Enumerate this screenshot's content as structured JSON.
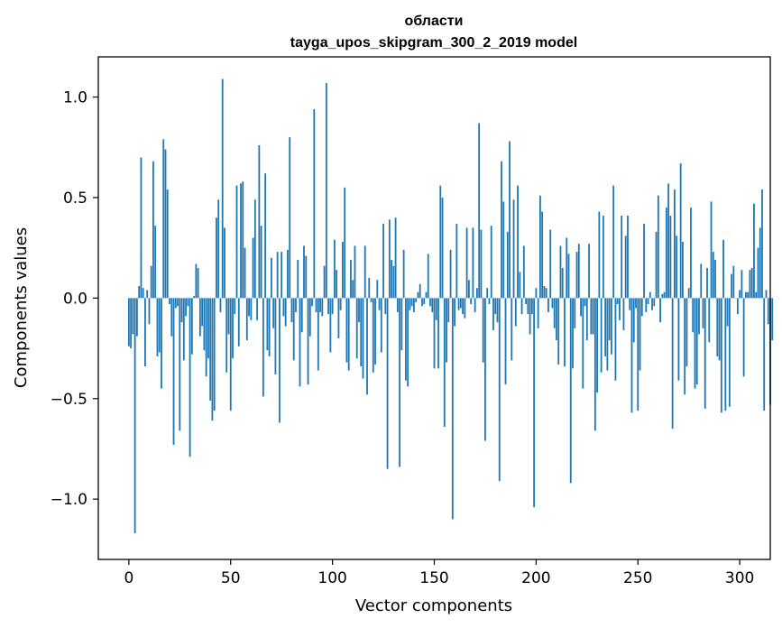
{
  "chart_data": {
    "type": "bar",
    "title": "области",
    "subtitle": "tayga_upos_skipgram_300_2_2019 model",
    "xlabel": "Vector components",
    "ylabel": "Components values",
    "xlim": [
      -15,
      315
    ],
    "ylim": [
      -1.3,
      1.2
    ],
    "x_ticks": [
      0,
      50,
      100,
      150,
      200,
      250,
      300
    ],
    "y_ticks": [
      -1.0,
      -0.5,
      0.0,
      0.5,
      1.0
    ],
    "x_tick_labels": [
      "0",
      "50",
      "100",
      "150",
      "200",
      "250",
      "300"
    ],
    "y_tick_labels": [
      "−1.0",
      "−0.5",
      "0.0",
      "0.5",
      "1.0"
    ],
    "bar_color": "#1f77b4",
    "grid": false,
    "values": [
      -0.24,
      -0.25,
      -0.18,
      -1.17,
      -0.19,
      0.06,
      0.7,
      0.05,
      -0.34,
      0.04,
      -0.13,
      0.16,
      0.68,
      0.36,
      -0.29,
      -0.27,
      -0.45,
      0.79,
      0.74,
      0.54,
      -0.03,
      -0.19,
      -0.73,
      -0.05,
      -0.04,
      -0.66,
      -0.12,
      -0.31,
      -0.09,
      -0.04,
      -0.79,
      -0.28,
      0.01,
      0.17,
      0.15,
      -0.19,
      -0.14,
      -0.26,
      -0.39,
      -0.3,
      -0.51,
      -0.61,
      -0.56,
      0.4,
      0.49,
      -0.07,
      1.09,
      0.35,
      -0.37,
      -0.18,
      -0.56,
      -0.3,
      -0.08,
      0.56,
      -0.24,
      0.57,
      0.58,
      0.25,
      -0.21,
      -0.09,
      -0.11,
      0.3,
      0.49,
      -0.11,
      0.76,
      0.36,
      -0.49,
      0.62,
      -0.26,
      -0.29,
      0.2,
      -0.15,
      -0.38,
      0.23,
      -0.62,
      0.23,
      -0.09,
      -0.14,
      0.24,
      0.8,
      -0.12,
      -0.31,
      -0.07,
      0.19,
      -0.44,
      -0.17,
      0.26,
      0.21,
      -0.43,
      -0.19,
      -0.04,
      0.94,
      -0.07,
      -0.36,
      -0.07,
      -0.09,
      0.16,
      1.07,
      -0.08,
      -0.27,
      -0.08,
      0.29,
      0.14,
      -0.2,
      -0.06,
      0.28,
      0.55,
      -0.32,
      -0.36,
      0.19,
      0.09,
      0.26,
      -0.3,
      -0.12,
      -0.34,
      -0.4,
      0.26,
      -0.48,
      0.1,
      -0.02,
      -0.37,
      -0.33,
      0.09,
      -0.06,
      -0.27,
      0.37,
      -0.08,
      -0.85,
      0.39,
      0.19,
      0.16,
      0.4,
      -0.07,
      -0.84,
      -0.26,
      0.24,
      -0.41,
      -0.44,
      -0.06,
      -0.04,
      -0.07,
      -0.02,
      0.03,
      0.07,
      -0.04,
      -0.03,
      0.03,
      0.22,
      -0.04,
      -0.07,
      -0.35,
      -0.11,
      -0.35,
      0.56,
      0.5,
      -0.64,
      -0.32,
      -0.12,
      0.24,
      -1.1,
      -0.14,
      0.37,
      -0.06,
      -0.05,
      -0.08,
      -0.1,
      0.35,
      0.09,
      -0.03,
      0.35,
      -0.07,
      0.05,
      0.87,
      0.34,
      -0.32,
      -0.71,
      0.05,
      -0.03,
      0.36,
      -0.16,
      -0.08,
      -0.12,
      -0.91,
      0.68,
      0.48,
      -0.43,
      0.33,
      0.78,
      -0.31,
      0.49,
      -0.14,
      0.56,
      0.13,
      -0.08,
      0.26,
      -0.03,
      -0.08,
      -0.18,
      -0.08,
      -1.04,
      0.05,
      -0.15,
      0.51,
      0.43,
      0.06,
      0.05,
      -0.07,
      0.34,
      -0.05,
      -0.15,
      -0.21,
      -0.33,
      0.26,
      0.15,
      -0.34,
      0.3,
      0.22,
      -0.92,
      -0.35,
      -0.15,
      0.23,
      0.27,
      -0.09,
      -0.45,
      -0.04,
      -0.21,
      0.27,
      -0.18,
      -0.18,
      -0.66,
      -0.47,
      0.43,
      -0.37,
      0.41,
      -0.29,
      -0.36,
      -0.21,
      -0.28,
      0.56,
      -0.41,
      -0.03,
      -0.11,
      0.41,
      -0.16,
      0.31,
      0.41,
      -0.06,
      -0.57,
      -0.22,
      -0.05,
      -0.56,
      -0.36,
      -0.09,
      0.37,
      -0.07,
      -0.03,
      0.03,
      -0.06,
      -0.04,
      0.33,
      0.51,
      -0.12,
      0.02,
      0.03,
      0.45,
      0.57,
      0.41,
      -0.65,
      0.54,
      0.31,
      -0.41,
      0.67,
      0.28,
      -0.48,
      -0.34,
      0.05,
      0.45,
      -0.17,
      -0.45,
      -0.43,
      -0.18,
      0.17,
      -0.15,
      -0.55,
      0.15,
      -0.22,
      0.48,
      0.23,
      0.19,
      -0.29,
      -0.31,
      -0.57,
      0.29,
      -0.56,
      -0.14,
      -0.54,
      0.12,
      0.16,
      0.0,
      -0.08,
      0.04,
      0.14,
      -0.39,
      0.03,
      0.03,
      0.14,
      0.15,
      0.47,
      0.03,
      0.25,
      0.35,
      0.54,
      -0.56,
      0.04,
      -0.13,
      -0.53,
      -0.21
    ]
  }
}
